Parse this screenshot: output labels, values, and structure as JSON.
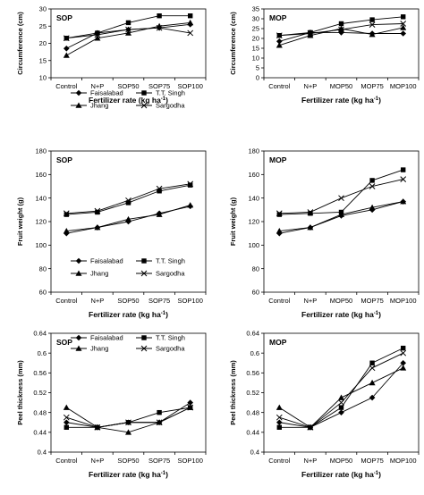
{
  "chart_data": [
    {
      "type": "line",
      "panel_label": "SOP",
      "xlabel": "Fertilizer rate (kg ha⁻¹)",
      "ylabel": "Circumference (cm)",
      "categories": [
        "Control",
        "N+P",
        "SOP50",
        "SOP75",
        "SOP100"
      ],
      "ylim": [
        10,
        30
      ],
      "yticks": [
        10,
        15,
        20,
        25,
        30
      ],
      "series": [
        {
          "name": "Faisalabad",
          "marker": "diamond",
          "values": [
            18.5,
            23.0,
            24.0,
            24.5,
            25.5
          ]
        },
        {
          "name": "T.T. Singh",
          "marker": "square",
          "values": [
            21.5,
            23.0,
            26.0,
            28.0,
            28.0
          ]
        },
        {
          "name": "Jhang",
          "marker": "triangle",
          "values": [
            16.5,
            21.5,
            23.0,
            25.0,
            26.0
          ]
        },
        {
          "name": "Sargodha",
          "marker": "x",
          "values": [
            21.5,
            22.5,
            24.0,
            24.5,
            23.0
          ]
        }
      ],
      "legend": "lower-center"
    },
    {
      "type": "line",
      "panel_label": "MOP",
      "xlabel": "Fertilizer rate (kg ha⁻¹)",
      "ylabel": "Circumference (cm)",
      "categories": [
        "Control",
        "N+P",
        "MOP50",
        "MOP75",
        "MOP100"
      ],
      "ylim": [
        0,
        35
      ],
      "yticks": [
        0,
        5,
        10,
        15,
        20,
        25,
        30,
        35
      ],
      "series": [
        {
          "name": "Faisalabad",
          "marker": "diamond",
          "values": [
            18.5,
            23.0,
            23.0,
            22.5,
            22.5
          ]
        },
        {
          "name": "T.T. Singh",
          "marker": "square",
          "values": [
            21.5,
            23.0,
            27.5,
            29.5,
            31.0
          ]
        },
        {
          "name": "Jhang",
          "marker": "triangle",
          "values": [
            16.5,
            21.5,
            25.0,
            22.0,
            25.5
          ]
        },
        {
          "name": "Sargodha",
          "marker": "x",
          "values": [
            21.5,
            22.5,
            24.5,
            27.0,
            27.5
          ]
        }
      ]
    },
    {
      "type": "line",
      "panel_label": "SOP",
      "xlabel": "Fertilizer rate (kg ha⁻¹)",
      "ylabel": "Fruit weight (g)",
      "categories": [
        "Control",
        "N+P",
        "SOP50",
        "SOP75",
        "SOP100"
      ],
      "ylim": [
        60,
        180
      ],
      "yticks": [
        60,
        80,
        100,
        120,
        140,
        160,
        180
      ],
      "series": [
        {
          "name": "Faisalabad",
          "marker": "diamond",
          "values": [
            110,
            115,
            120,
            127,
            133
          ]
        },
        {
          "name": "T.T. Singh",
          "marker": "square",
          "values": [
            126,
            128,
            136,
            146,
            151
          ]
        },
        {
          "name": "Jhang",
          "marker": "triangle",
          "values": [
            112,
            115,
            122,
            126,
            134
          ]
        },
        {
          "name": "Sargodha",
          "marker": "x",
          "values": [
            127,
            129,
            138,
            148,
            152
          ]
        }
      ],
      "legend": "lower-center"
    },
    {
      "type": "line",
      "panel_label": "MOP",
      "xlabel": "Fertilizer rate (kg ha⁻¹)",
      "ylabel": "Fruit weight (g)",
      "categories": [
        "Control",
        "N+P",
        "MOP50",
        "MOP75",
        "MOP100"
      ],
      "ylim": [
        60,
        180
      ],
      "yticks": [
        60,
        80,
        100,
        120,
        140,
        160,
        180
      ],
      "series": [
        {
          "name": "Faisalabad",
          "marker": "diamond",
          "values": [
            110,
            115,
            125,
            130,
            137
          ]
        },
        {
          "name": "T.T. Singh",
          "marker": "square",
          "values": [
            126,
            127,
            128,
            155,
            164
          ]
        },
        {
          "name": "Jhang",
          "marker": "triangle",
          "values": [
            112,
            115,
            126,
            132,
            137
          ]
        },
        {
          "name": "Sargodha",
          "marker": "x",
          "values": [
            127,
            128,
            140,
            150,
            156
          ]
        }
      ]
    },
    {
      "type": "line",
      "panel_label": "SOP",
      "xlabel": "Fertilizer rate (kg ha⁻¹)",
      "ylabel": "Peel thickness (mm)",
      "categories": [
        "Control",
        "N+P",
        "SOP50",
        "SOP75",
        "SOP100"
      ],
      "ylim": [
        0.4,
        0.64
      ],
      "yticks": [
        "0.4",
        "0.44",
        "0.48",
        "0.52",
        "0.56",
        "0.6",
        "0.64"
      ],
      "series": [
        {
          "name": "Faisalabad",
          "marker": "diamond",
          "values": [
            0.46,
            0.45,
            0.46,
            0.46,
            0.5
          ]
        },
        {
          "name": "T.T. Singh",
          "marker": "square",
          "values": [
            0.45,
            0.45,
            0.46,
            0.48,
            0.49
          ]
        },
        {
          "name": "Jhang",
          "marker": "triangle",
          "values": [
            0.49,
            0.45,
            0.44,
            0.46,
            0.49
          ]
        },
        {
          "name": "Sargodha",
          "marker": "x",
          "values": [
            0.47,
            0.45,
            0.46,
            0.46,
            0.49
          ]
        }
      ],
      "legend": "upper-center"
    },
    {
      "type": "line",
      "panel_label": "MOP",
      "xlabel": "Fertilizer rate (kg ha⁻¹)",
      "ylabel": "Peel thickness (mm)",
      "categories": [
        "Control",
        "N+P",
        "MOP50",
        "MOP75",
        "MOP100"
      ],
      "ylim": [
        0.4,
        0.64
      ],
      "yticks": [
        "0.4",
        "0.44",
        "0.48",
        "0.52",
        "0.56",
        "0.6",
        "0.64"
      ],
      "series": [
        {
          "name": "Faisalabad",
          "marker": "diamond",
          "values": [
            0.46,
            0.45,
            0.48,
            0.51,
            0.58
          ]
        },
        {
          "name": "T.T. Singh",
          "marker": "square",
          "values": [
            0.45,
            0.45,
            0.49,
            0.58,
            0.61
          ]
        },
        {
          "name": "Jhang",
          "marker": "triangle",
          "values": [
            0.49,
            0.45,
            0.51,
            0.54,
            0.57
          ]
        },
        {
          "name": "Sargodha",
          "marker": "x",
          "values": [
            0.47,
            0.45,
            0.5,
            0.57,
            0.6
          ]
        }
      ]
    }
  ]
}
